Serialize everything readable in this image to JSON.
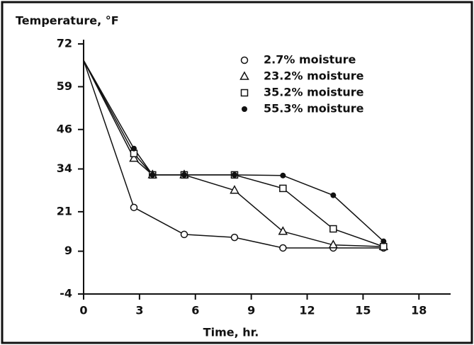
{
  "chart_data": {
    "type": "line",
    "title": "Temperature, °F",
    "x_label": "Time, hr.",
    "xlim": [
      0,
      19.7
    ],
    "xticks": [
      0,
      3,
      6,
      9,
      12,
      15,
      18
    ],
    "ylim": [
      -4,
      72
    ],
    "yticks": [
      -4,
      9,
      21,
      34,
      46,
      59,
      72
    ],
    "color": "#111111",
    "series": [
      {
        "name": "2.7% moisture",
        "marker": "circle",
        "x": [
          0,
          2.7,
          5.4,
          8.1,
          10.7,
          13.4,
          16.1
        ],
        "values": [
          67,
          22.3,
          14.1,
          13.2,
          10,
          10,
          10
        ]
      },
      {
        "name": "23.2% moisture",
        "marker": "triangle",
        "x": [
          0,
          2.7,
          3.7,
          5.4,
          8.1,
          10.7,
          13.4,
          16.1
        ],
        "values": [
          67,
          37.2,
          32.2,
          32.2,
          27.5,
          15,
          10.9,
          10.4
        ]
      },
      {
        "name": "35.2% moisture",
        "marker": "square",
        "x": [
          0,
          2.7,
          3.7,
          5.4,
          8.1,
          10.7,
          13.4,
          16.1
        ],
        "values": [
          67,
          38.7,
          32.2,
          32.2,
          32.2,
          28.1,
          15.8,
          10.4
        ]
      },
      {
        "name": "55.3% moisture",
        "marker": "dot",
        "x": [
          0,
          2.7,
          3.7,
          5.4,
          8.1,
          10.7,
          13.4,
          16.1
        ],
        "values": [
          67,
          40.2,
          32.2,
          32.2,
          32.2,
          32,
          26,
          12
        ]
      }
    ]
  }
}
